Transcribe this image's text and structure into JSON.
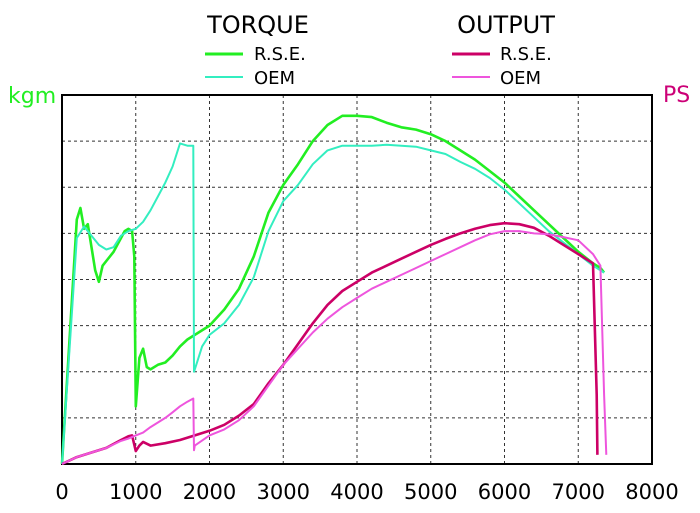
{
  "chart_data": {
    "type": "line",
    "title": "",
    "xlabel": "",
    "ylabel_left": "kgm",
    "ylabel_right": "PS",
    "xlim": [
      0,
      8000
    ],
    "x_ticks": [
      "0",
      "1000",
      "2000",
      "3000",
      "4000",
      "5000",
      "6000",
      "7000",
      "8000"
    ],
    "grid": true,
    "y_left_range_rel": [
      0,
      8
    ],
    "legend": {
      "placement": "top",
      "groups": [
        {
          "title": "TORQUE",
          "entries": [
            "R.S.E.",
            "OEM"
          ]
        },
        {
          "title": "OUTPUT",
          "entries": [
            "R.S.E.",
            "OEM"
          ]
        }
      ]
    },
    "colors": {
      "torque_rse": "#22ee22",
      "torque_oem": "#33eec0",
      "output_rse": "#cc0066",
      "output_oem": "#ee55dd",
      "left_axis": "#22ee22",
      "right_axis": "#cc0077"
    },
    "series": [
      {
        "name": "R.S.E.",
        "group": "TORQUE",
        "x": [
          0,
          200,
          250,
          300,
          350,
          400,
          450,
          500,
          550,
          600,
          700,
          800,
          850,
          900,
          950,
          980,
          1000,
          1050,
          1100,
          1150,
          1200,
          1300,
          1400,
          1500,
          1600,
          1700,
          1800,
          2000,
          2200,
          2400,
          2600,
          2800,
          3000,
          3200,
          3400,
          3600,
          3800,
          4000,
          4200,
          4400,
          4600,
          4800,
          5000,
          5200,
          5400,
          5600,
          5800,
          6000,
          6200,
          6400,
          6600,
          6800,
          7000,
          7200,
          7300,
          7350
        ],
        "y": [
          0,
          5.3,
          5.55,
          5.1,
          5.2,
          4.7,
          4.2,
          3.95,
          4.3,
          4.4,
          4.6,
          4.9,
          5.05,
          5.1,
          5.05,
          4.5,
          1.25,
          2.3,
          2.5,
          2.1,
          2.05,
          2.15,
          2.2,
          2.35,
          2.55,
          2.7,
          2.8,
          3.0,
          3.35,
          3.8,
          4.5,
          5.45,
          6.05,
          6.5,
          7.0,
          7.35,
          7.55,
          7.55,
          7.52,
          7.4,
          7.3,
          7.25,
          7.15,
          7.0,
          6.8,
          6.6,
          6.35,
          6.1,
          5.8,
          5.5,
          5.2,
          4.9,
          4.6,
          4.35,
          4.25,
          4.15
        ]
      },
      {
        "name": "OEM",
        "group": "TORQUE",
        "x": [
          0,
          200,
          300,
          400,
          500,
          600,
          700,
          800,
          900,
          1000,
          1100,
          1200,
          1300,
          1400,
          1500,
          1600,
          1700,
          1780,
          1790,
          1800,
          1900,
          2000,
          2200,
          2400,
          2600,
          2800,
          3000,
          3200,
          3400,
          3600,
          3800,
          4000,
          4200,
          4400,
          4600,
          4800,
          5000,
          5200,
          5400,
          5600,
          5800,
          6000,
          6200,
          6400,
          6600,
          6800,
          7000,
          7200,
          7300,
          7350
        ],
        "y": [
          0,
          4.9,
          5.15,
          4.95,
          4.75,
          4.65,
          4.7,
          4.95,
          5.05,
          5.1,
          5.25,
          5.5,
          5.8,
          6.1,
          6.45,
          6.95,
          6.9,
          6.9,
          2.0,
          2.05,
          2.55,
          2.8,
          3.05,
          3.45,
          4.05,
          5.05,
          5.7,
          6.05,
          6.5,
          6.8,
          6.9,
          6.9,
          6.9,
          6.92,
          6.9,
          6.88,
          6.8,
          6.72,
          6.55,
          6.4,
          6.2,
          5.95,
          5.65,
          5.35,
          5.05,
          4.8,
          4.55,
          4.3,
          4.2,
          4.15
        ]
      },
      {
        "name": "R.S.E.",
        "group": "OUTPUT",
        "x": [
          0,
          200,
          400,
          600,
          800,
          900,
          950,
          1000,
          1050,
          1100,
          1200,
          1400,
          1600,
          1800,
          2000,
          2200,
          2400,
          2600,
          2800,
          3000,
          3200,
          3400,
          3600,
          3800,
          4000,
          4200,
          4400,
          4600,
          4800,
          5000,
          5200,
          5400,
          5600,
          5800,
          6000,
          6200,
          6400,
          6600,
          6800,
          7000,
          7200,
          7250,
          7260
        ],
        "y": [
          0,
          0.15,
          0.25,
          0.35,
          0.52,
          0.6,
          0.62,
          0.28,
          0.4,
          0.48,
          0.4,
          0.45,
          0.52,
          0.62,
          0.72,
          0.85,
          1.05,
          1.3,
          1.75,
          2.15,
          2.6,
          3.05,
          3.45,
          3.75,
          3.95,
          4.15,
          4.3,
          4.45,
          4.6,
          4.75,
          4.88,
          5.0,
          5.1,
          5.18,
          5.22,
          5.2,
          5.12,
          4.95,
          4.75,
          4.55,
          4.35,
          1.5,
          0.2
        ]
      },
      {
        "name": "OEM",
        "group": "OUTPUT",
        "x": [
          0,
          200,
          400,
          600,
          800,
          900,
          1000,
          1100,
          1200,
          1300,
          1400,
          1500,
          1600,
          1700,
          1780,
          1790,
          1800,
          2000,
          2200,
          2400,
          2600,
          2800,
          3000,
          3200,
          3400,
          3600,
          3800,
          4000,
          4200,
          4400,
          4600,
          4800,
          5000,
          5200,
          5400,
          5600,
          5800,
          6000,
          6200,
          6400,
          6600,
          6800,
          7000,
          7200,
          7300,
          7350,
          7380
        ],
        "y": [
          0,
          0.15,
          0.25,
          0.35,
          0.5,
          0.55,
          0.62,
          0.68,
          0.8,
          0.9,
          1.0,
          1.12,
          1.25,
          1.35,
          1.42,
          0.3,
          0.4,
          0.62,
          0.75,
          0.95,
          1.25,
          1.7,
          2.15,
          2.5,
          2.85,
          3.15,
          3.4,
          3.6,
          3.8,
          3.95,
          4.1,
          4.25,
          4.4,
          4.55,
          4.7,
          4.85,
          4.98,
          5.05,
          5.05,
          5.0,
          4.98,
          4.92,
          4.85,
          4.55,
          4.3,
          1.5,
          0.2
        ]
      }
    ]
  }
}
